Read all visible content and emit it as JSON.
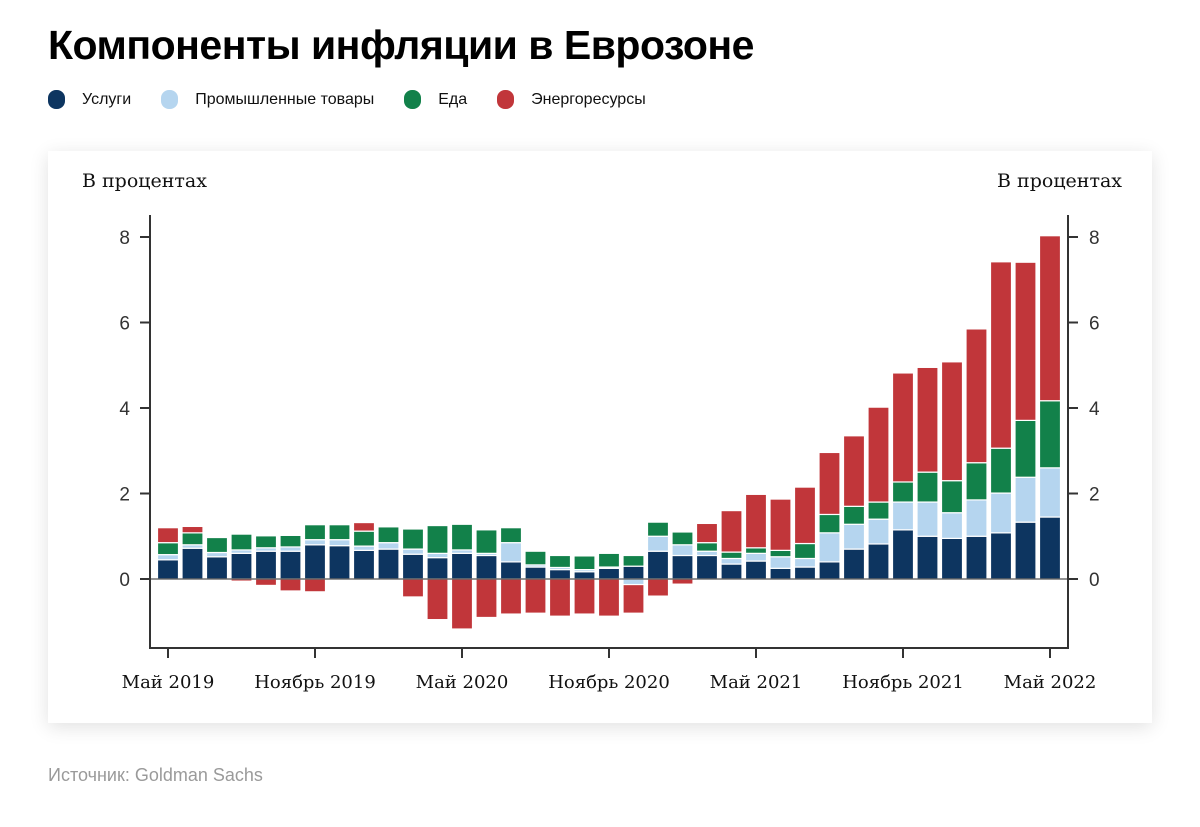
{
  "header": {
    "title": "Компоненты инфляции в Еврозоне"
  },
  "legend": [
    {
      "label": "Услуги",
      "color": "#0d3560"
    },
    {
      "label": "Промышленные товары",
      "color": "#b5d5ef"
    },
    {
      "label": "Еда",
      "color": "#12814a"
    },
    {
      "label": "Энергоресурсы",
      "color": "#c1363a"
    }
  ],
  "source": "Источник: Goldman Sachs",
  "chart_data": {
    "type": "bar",
    "stacked": true,
    "title": "Компоненты инфляции в Еврозоне",
    "ylabel_left": "В процентах",
    "ylabel_right": "В процентах",
    "xlabel": "",
    "ylim": [
      -1.6,
      8.5
    ],
    "yticks": [
      0,
      2,
      4,
      6,
      8
    ],
    "grid": false,
    "legend_position": "top-left",
    "xtick_labels": [
      {
        "label": "Май 2019",
        "index": 0
      },
      {
        "label": "Ноябрь 2019",
        "index": 6
      },
      {
        "label": "Май 2020",
        "index": 12
      },
      {
        "label": "Ноябрь 2020",
        "index": 18
      },
      {
        "label": "Май 2021",
        "index": 24
      },
      {
        "label": "Ноябрь 2021",
        "index": 30
      },
      {
        "label": "Май 2022",
        "index": 36
      }
    ],
    "categories": [
      "2019-05",
      "2019-06",
      "2019-07",
      "2019-08",
      "2019-09",
      "2019-10",
      "2019-11",
      "2019-12",
      "2020-01",
      "2020-02",
      "2020-03",
      "2020-04",
      "2020-05",
      "2020-06",
      "2020-07",
      "2020-08",
      "2020-09",
      "2020-10",
      "2020-11",
      "2020-12",
      "2021-01",
      "2021-02",
      "2021-03",
      "2021-04",
      "2021-05",
      "2021-06",
      "2021-07",
      "2021-08",
      "2021-09",
      "2021-10",
      "2021-11",
      "2021-12",
      "2022-01",
      "2022-02",
      "2022-03",
      "2022-04",
      "2022-05"
    ],
    "series": [
      {
        "name": "Услуги",
        "color": "#0d3560",
        "values": [
          0.45,
          0.72,
          0.52,
          0.6,
          0.65,
          0.65,
          0.8,
          0.78,
          0.67,
          0.7,
          0.58,
          0.5,
          0.6,
          0.55,
          0.4,
          0.28,
          0.22,
          0.17,
          0.25,
          0.3,
          0.65,
          0.55,
          0.55,
          0.35,
          0.42,
          0.25,
          0.28,
          0.4,
          0.7,
          0.82,
          1.15,
          1.0,
          0.95,
          1.0,
          1.08,
          1.33,
          1.45
        ]
      },
      {
        "name": "Промышленные товары",
        "color": "#b5d5ef",
        "values": [
          0.12,
          0.08,
          0.1,
          0.08,
          0.08,
          0.1,
          0.12,
          0.14,
          0.1,
          0.15,
          0.12,
          0.1,
          0.08,
          0.05,
          0.45,
          0.05,
          0.05,
          0.05,
          0.03,
          -0.13,
          0.35,
          0.25,
          0.1,
          0.13,
          0.18,
          0.27,
          0.2,
          0.68,
          0.58,
          0.58,
          0.65,
          0.8,
          0.6,
          0.85,
          0.93,
          1.05,
          1.15
        ]
      },
      {
        "name": "Еда",
        "color": "#12814a",
        "values": [
          0.28,
          0.28,
          0.35,
          0.37,
          0.28,
          0.27,
          0.35,
          0.35,
          0.35,
          0.37,
          0.47,
          0.65,
          0.6,
          0.55,
          0.35,
          0.32,
          0.28,
          0.32,
          0.32,
          0.25,
          0.33,
          0.3,
          0.2,
          0.15,
          0.13,
          0.15,
          0.35,
          0.43,
          0.42,
          0.4,
          0.47,
          0.7,
          0.75,
          0.87,
          1.05,
          1.33,
          1.57
        ]
      },
      {
        "name": "Энергоресурсы",
        "color": "#c1363a",
        "values": [
          0.35,
          0.15,
          0.0,
          -0.05,
          -0.15,
          -0.28,
          -0.3,
          0.0,
          0.2,
          0.0,
          -0.42,
          -0.95,
          -1.17,
          -0.9,
          -0.82,
          -0.8,
          -0.87,
          -0.82,
          -0.87,
          -0.67,
          -0.4,
          -0.12,
          0.45,
          0.97,
          1.25,
          1.2,
          1.32,
          1.45,
          1.65,
          2.22,
          2.55,
          2.45,
          2.78,
          3.13,
          4.36,
          3.7,
          3.86
        ]
      }
    ]
  }
}
